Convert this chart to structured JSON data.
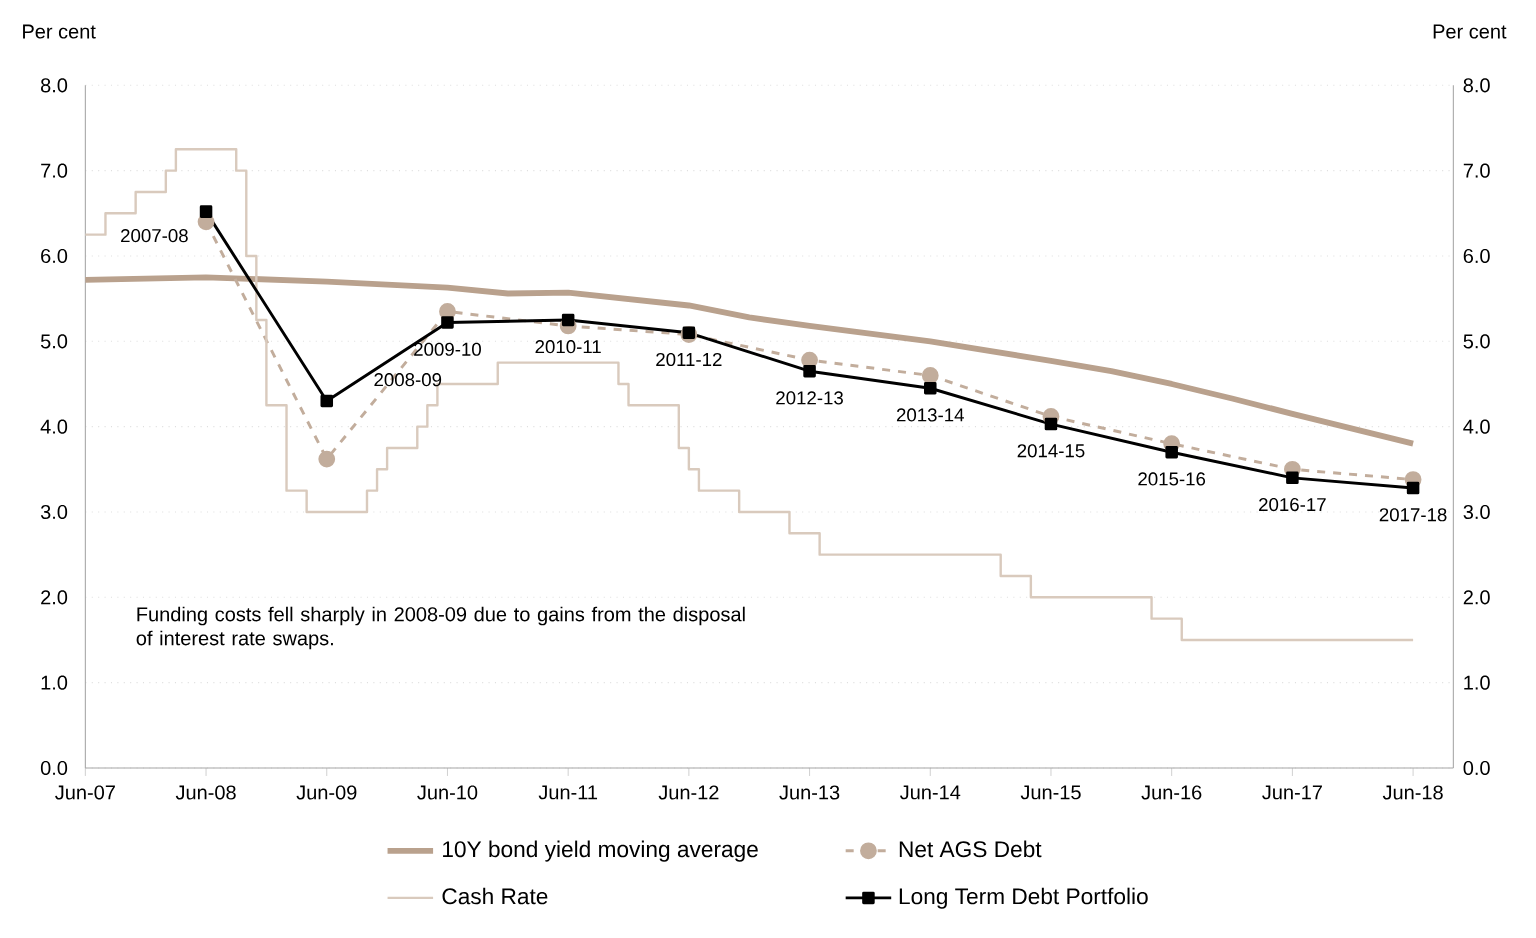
{
  "chart_data": {
    "type": "line",
    "ylabel": "Per cent",
    "y2label": "Per cent",
    "xlim": [
      "2007-06",
      "2018-10"
    ],
    "xticks": [
      {
        "value": "2007-06",
        "label": "Jun-07"
      },
      {
        "value": "2008-06",
        "label": "Jun-08"
      },
      {
        "value": "2009-06",
        "label": "Jun-09"
      },
      {
        "value": "2010-06",
        "label": "Jun-10"
      },
      {
        "value": "2011-06",
        "label": "Jun-11"
      },
      {
        "value": "2012-06",
        "label": "Jun-12"
      },
      {
        "value": "2013-06",
        "label": "Jun-13"
      },
      {
        "value": "2014-06",
        "label": "Jun-14"
      },
      {
        "value": "2015-06",
        "label": "Jun-15"
      },
      {
        "value": "2016-06",
        "label": "Jun-16"
      },
      {
        "value": "2017-06",
        "label": "Jun-17"
      },
      {
        "value": "2018-06",
        "label": "Jun-18"
      }
    ],
    "ylim": [
      0,
      8
    ],
    "yticks": [
      {
        "value": 0,
        "label": "0.0"
      },
      {
        "value": 1,
        "label": "1.0"
      },
      {
        "value": 2,
        "label": "2.0"
      },
      {
        "value": 3,
        "label": "3.0"
      },
      {
        "value": 4,
        "label": "4.0"
      },
      {
        "value": 5,
        "label": "5.0"
      },
      {
        "value": 6,
        "label": "6.0"
      },
      {
        "value": 7,
        "label": "7.0"
      },
      {
        "value": 8,
        "label": "8.0"
      }
    ],
    "y2lim": [
      0,
      8
    ],
    "y2ticks": [
      {
        "value": 0,
        "label": "0.0"
      },
      {
        "value": 1,
        "label": "1.0"
      },
      {
        "value": 2,
        "label": "2.0"
      },
      {
        "value": 3,
        "label": "3.0"
      },
      {
        "value": 4,
        "label": "4.0"
      },
      {
        "value": 5,
        "label": "5.0"
      },
      {
        "value": 6,
        "label": "6.0"
      },
      {
        "value": 7,
        "label": "7.0"
      },
      {
        "value": 8,
        "label": "8.0"
      }
    ],
    "grid": "y",
    "legend": "bottom",
    "series": [
      {
        "name": "10Y bond yield moving average",
        "color": "#b9a18d",
        "marker": "none",
        "line_style": "solid",
        "x": [
          "2007-06",
          "2008-06",
          "2009-06",
          "2010-06",
          "2010-12",
          "2011-06",
          "2012-06",
          "2012-12",
          "2013-06",
          "2014-06",
          "2015-06",
          "2015-12",
          "2016-06",
          "2016-12",
          "2017-06",
          "2018-06"
        ],
        "values": [
          5.72,
          5.75,
          5.7,
          5.63,
          5.56,
          5.57,
          5.42,
          5.28,
          5.18,
          5.0,
          4.77,
          4.65,
          4.5,
          4.33,
          4.15,
          3.8
        ]
      },
      {
        "name": "Net AGS Debt",
        "color": "#c2ad9c",
        "marker": "circle",
        "line_style": "dashed",
        "x": [
          "2008-06",
          "2009-06",
          "2010-06",
          "2011-06",
          "2012-06",
          "2013-06",
          "2014-06",
          "2015-06",
          "2016-06",
          "2017-06",
          "2018-06"
        ],
        "values": [
          6.4,
          3.62,
          5.35,
          5.18,
          5.08,
          4.78,
          4.6,
          4.12,
          3.8,
          3.5,
          3.38
        ]
      },
      {
        "name": "Cash Rate",
        "color": "#d9cabd",
        "type": "step",
        "marker": "none",
        "line_style": "solid",
        "x": [
          "2007-06",
          "2007-08",
          "2007-11",
          "2008-02",
          "2008-03",
          "2008-09",
          "2008-10",
          "2008-11",
          "2008-12",
          "2009-02",
          "2009-04",
          "2009-10",
          "2009-11",
          "2009-12",
          "2010-03",
          "2010-04",
          "2010-05",
          "2010-11",
          "2011-11",
          "2011-12",
          "2012-05",
          "2012-06",
          "2012-07",
          "2012-11",
          "2013-04",
          "2013-07",
          "2015-01",
          "2015-04",
          "2016-04",
          "2016-07",
          "2018-06"
        ],
        "values": [
          6.25,
          6.5,
          6.75,
          7.0,
          7.25,
          7.0,
          6.0,
          5.25,
          4.25,
          3.25,
          3.0,
          3.25,
          3.5,
          3.75,
          4.0,
          4.25,
          4.5,
          4.75,
          4.5,
          4.25,
          3.75,
          3.5,
          3.25,
          3.0,
          2.75,
          2.5,
          2.25,
          2.0,
          1.75,
          1.5,
          1.5
        ]
      },
      {
        "name": "Long Term Debt Portfolio",
        "color": "#000000",
        "marker": "square",
        "line_style": "solid",
        "x": [
          "2008-06",
          "2009-06",
          "2010-06",
          "2011-06",
          "2012-06",
          "2013-06",
          "2014-06",
          "2015-06",
          "2016-06",
          "2017-06",
          "2018-06"
        ],
        "values": [
          6.52,
          4.3,
          5.22,
          5.25,
          5.1,
          4.65,
          4.45,
          4.03,
          3.7,
          3.4,
          3.28
        ]
      }
    ],
    "annotations": [
      {
        "text": "2007-08",
        "x": "2008-06",
        "y": 6.52
      },
      {
        "text": "2008-09",
        "x": "2009-06",
        "y": 4.3
      },
      {
        "text": "2009-10",
        "x": "2010-06",
        "y": 5.22
      },
      {
        "text": "2010-11",
        "x": "2011-06",
        "y": 5.25
      },
      {
        "text": "2011-12",
        "x": "2012-06",
        "y": 5.1
      },
      {
        "text": "2012-13",
        "x": "2013-06",
        "y": 4.65
      },
      {
        "text": "2013-14",
        "x": "2014-06",
        "y": 4.45
      },
      {
        "text": "2014-15",
        "x": "2015-06",
        "y": 4.03
      },
      {
        "text": "2015-16",
        "x": "2016-06",
        "y": 3.7
      },
      {
        "text": "2016-17",
        "x": "2017-06",
        "y": 3.4
      },
      {
        "text": "2017-18",
        "x": "2018-06",
        "y": 3.28
      },
      "Funding costs fell sharply in 2008-09 due to gains from the disposal of interest rate swaps."
    ]
  }
}
